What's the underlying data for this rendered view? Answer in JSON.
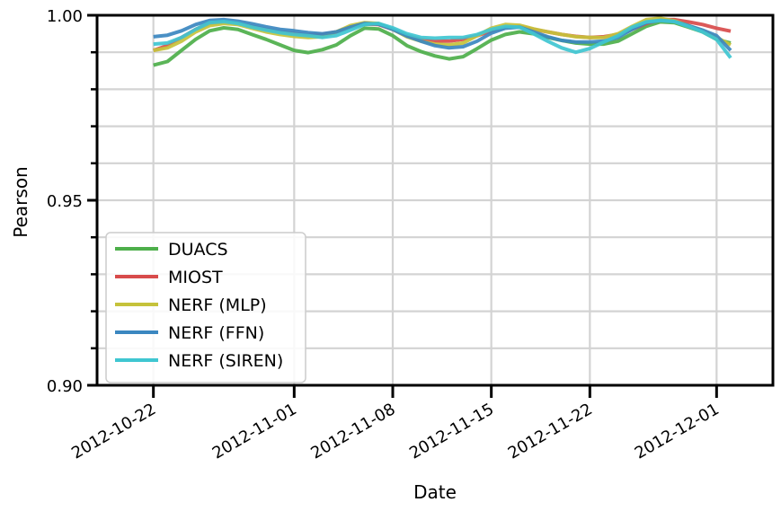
{
  "chart_data": {
    "type": "line",
    "xlabel": "Date",
    "ylabel": "Pearson",
    "ylim": [
      0.9,
      1.0
    ],
    "y_major_ticks": [
      0.9,
      0.95,
      1.0
    ],
    "y_major_labels": [
      "0.90",
      "0.95",
      "1.00"
    ],
    "y_minor_ticks": [
      0.91,
      0.92,
      0.93,
      0.94,
      0.96,
      0.97,
      0.98,
      0.99
    ],
    "x_range": [
      "2012-10-18",
      "2012-12-05"
    ],
    "x_ticks": [
      "2012-10-22",
      "2012-11-01",
      "2012-11-08",
      "2012-11-15",
      "2012-11-22",
      "2012-12-01"
    ],
    "grid": true,
    "legend_position": "lower-left",
    "x": [
      "2012-10-22",
      "2012-10-23",
      "2012-10-24",
      "2012-10-25",
      "2012-10-26",
      "2012-10-27",
      "2012-10-28",
      "2012-10-29",
      "2012-10-30",
      "2012-10-31",
      "2012-11-01",
      "2012-11-02",
      "2012-11-03",
      "2012-11-04",
      "2012-11-05",
      "2012-11-06",
      "2012-11-07",
      "2012-11-08",
      "2012-11-09",
      "2012-11-10",
      "2012-11-11",
      "2012-11-12",
      "2012-11-13",
      "2012-11-14",
      "2012-11-15",
      "2012-11-16",
      "2012-11-17",
      "2012-11-18",
      "2012-11-19",
      "2012-11-20",
      "2012-11-21",
      "2012-11-22",
      "2012-11-23",
      "2012-11-24",
      "2012-11-25",
      "2012-11-26",
      "2012-11-27",
      "2012-11-28",
      "2012-11-29",
      "2012-11-30",
      "2012-12-01",
      "2012-12-02"
    ],
    "series": [
      {
        "name": "DUACS",
        "color": "#4daf4a",
        "values": [
          0.9865,
          0.9875,
          0.9905,
          0.9935,
          0.9958,
          0.9966,
          0.9962,
          0.9948,
          0.9935,
          0.992,
          0.9905,
          0.9899,
          0.9907,
          0.992,
          0.9945,
          0.9965,
          0.9963,
          0.9945,
          0.9918,
          0.9902,
          0.989,
          0.9882,
          0.9888,
          0.991,
          0.9933,
          0.9948,
          0.9955,
          0.995,
          0.994,
          0.9932,
          0.9925,
          0.9922,
          0.9922,
          0.993,
          0.995,
          0.997,
          0.9982,
          0.998,
          0.9968,
          0.9955,
          0.9935,
          0.9925
        ]
      },
      {
        "name": "MIOST",
        "color": "#d84b4b",
        "values": [
          0.9905,
          0.9918,
          0.994,
          0.9962,
          0.9978,
          0.9982,
          0.9978,
          0.997,
          0.9962,
          0.9955,
          0.995,
          0.9947,
          0.9948,
          0.9955,
          0.9968,
          0.9976,
          0.9975,
          0.9962,
          0.9945,
          0.9935,
          0.993,
          0.993,
          0.9935,
          0.9945,
          0.9958,
          0.9968,
          0.997,
          0.9962,
          0.9955,
          0.9948,
          0.9943,
          0.994,
          0.9942,
          0.9948,
          0.9962,
          0.9978,
          0.9988,
          0.9988,
          0.9982,
          0.9975,
          0.9965,
          0.9957
        ]
      },
      {
        "name": "NERF (MLP)",
        "color": "#c5c23b",
        "values": [
          0.9905,
          0.9912,
          0.993,
          0.9955,
          0.9972,
          0.9978,
          0.9975,
          0.9965,
          0.9955,
          0.9948,
          0.9943,
          0.994,
          0.9942,
          0.9955,
          0.9972,
          0.998,
          0.9978,
          0.9962,
          0.9942,
          0.993,
          0.9922,
          0.992,
          0.9925,
          0.9945,
          0.9965,
          0.9975,
          0.9973,
          0.9963,
          0.9955,
          0.9948,
          0.9942,
          0.994,
          0.994,
          0.995,
          0.997,
          0.9988,
          0.9992,
          0.9985,
          0.9972,
          0.9958,
          0.994,
          0.992
        ]
      },
      {
        "name": "NERF (FFN)",
        "color": "#3b87c0",
        "values": [
          0.9942,
          0.9946,
          0.9958,
          0.9975,
          0.9986,
          0.9988,
          0.9984,
          0.9977,
          0.9969,
          0.9962,
          0.9958,
          0.9953,
          0.995,
          0.9955,
          0.9968,
          0.9978,
          0.9976,
          0.9962,
          0.9944,
          0.993,
          0.9918,
          0.9912,
          0.9915,
          0.993,
          0.9952,
          0.9965,
          0.9968,
          0.9955,
          0.9942,
          0.9932,
          0.9928,
          0.9928,
          0.993,
          0.994,
          0.9962,
          0.998,
          0.9986,
          0.9983,
          0.9972,
          0.996,
          0.9945,
          0.9905
        ]
      },
      {
        "name": "NERF (SIREN)",
        "color": "#3fc6d1",
        "values": [
          0.9922,
          0.9925,
          0.994,
          0.9962,
          0.998,
          0.9983,
          0.9978,
          0.9968,
          0.996,
          0.9953,
          0.9948,
          0.9945,
          0.994,
          0.9945,
          0.996,
          0.9975,
          0.9978,
          0.9966,
          0.995,
          0.994,
          0.9938,
          0.994,
          0.994,
          0.9948,
          0.9962,
          0.997,
          0.9968,
          0.995,
          0.993,
          0.9912,
          0.99,
          0.991,
          0.9928,
          0.9945,
          0.9968,
          0.9982,
          0.9986,
          0.9983,
          0.997,
          0.9955,
          0.9935,
          0.9885
        ]
      }
    ]
  }
}
